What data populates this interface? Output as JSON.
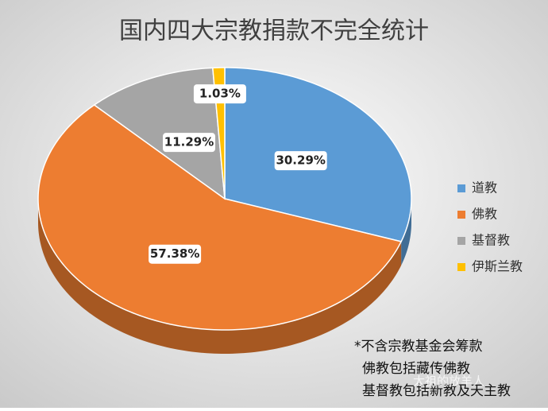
{
  "chart_data": {
    "type": "pie3d",
    "title": "国内四大宗教捐款不完全统计",
    "categories": [
      "道教",
      "佛教",
      "基督教",
      "伊斯兰教"
    ],
    "values": [
      30.29,
      57.38,
      11.29,
      1.03
    ],
    "value_labels": [
      "30.29%",
      "57.38%",
      "11.29%",
      "1.03%"
    ],
    "colors": [
      "#5b9bd5",
      "#ed7d31",
      "#a5a5a5",
      "#ffc000"
    ],
    "legend": "right",
    "notes": [
      "*不含宗教基金会筹款",
      "佛教包括藏传佛教",
      "基督教包括新教及天主教"
    ],
    "watermark": "太祖的放羊人"
  }
}
